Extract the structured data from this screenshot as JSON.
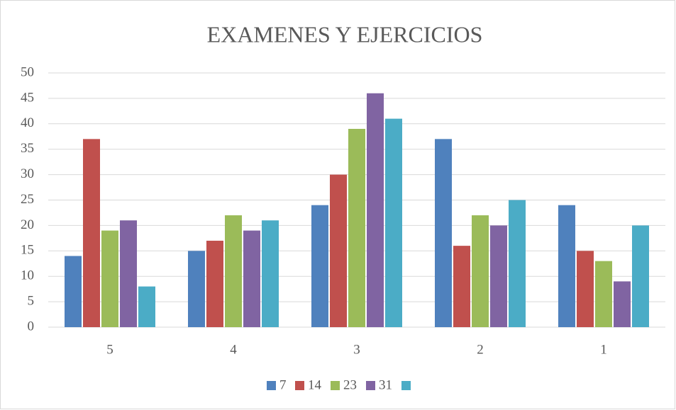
{
  "chart_data": {
    "type": "bar",
    "title": "EXAMENES Y EJERCICIOS",
    "categories": [
      "5",
      "4",
      "3",
      "2",
      "1"
    ],
    "series": [
      {
        "name": "7",
        "color": "#4f81bd",
        "values": [
          14,
          15,
          24,
          37,
          24
        ]
      },
      {
        "name": "14",
        "color": "#c0504d",
        "values": [
          37,
          17,
          30,
          16,
          15
        ]
      },
      {
        "name": "23",
        "color": "#9bbb59",
        "values": [
          19,
          22,
          39,
          22,
          13
        ]
      },
      {
        "name": "31",
        "color": "#8064a2",
        "values": [
          21,
          19,
          46,
          20,
          9
        ]
      },
      {
        "name": null,
        "color": "#4bacc6",
        "values": [
          8,
          21,
          41,
          25,
          20
        ]
      }
    ],
    "ylim": [
      0,
      50
    ],
    "yticks": [
      0,
      5,
      10,
      15,
      20,
      25,
      30,
      35,
      40,
      45,
      50
    ],
    "grid": true,
    "legend": "bottom"
  }
}
